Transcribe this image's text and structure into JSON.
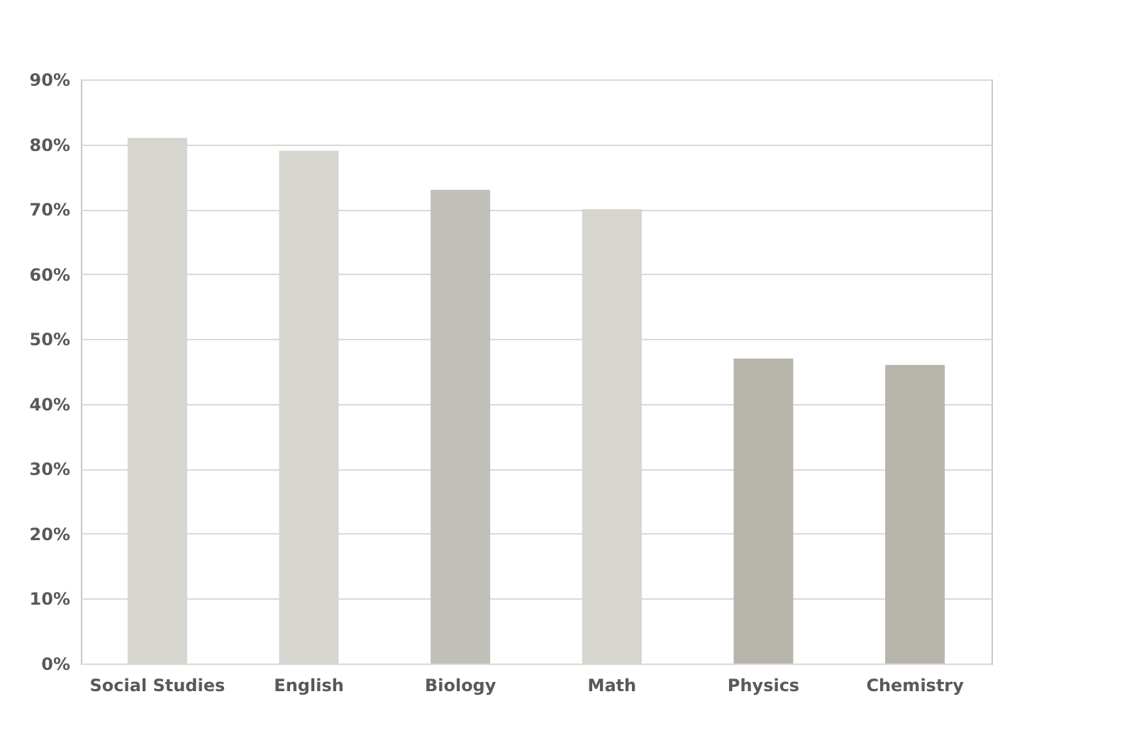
{
  "chart_data": {
    "type": "bar",
    "categories": [
      "Social Studies",
      "English",
      "Biology",
      "Math",
      "Physics",
      "Chemistry"
    ],
    "values": [
      81,
      79,
      73,
      70,
      47,
      46
    ],
    "colors": [
      "#d6d5cf",
      "#d6d5cf",
      "#c1c0b8",
      "#d6d5cf",
      "#b7b4ac",
      "#b7b4ac"
    ],
    "ylim": [
      0,
      90
    ],
    "yticks": [
      {
        "value": 0,
        "label": "0%"
      },
      {
        "value": 10,
        "label": "10%"
      },
      {
        "value": 20,
        "label": "20%"
      },
      {
        "value": 30,
        "label": "30%"
      },
      {
        "value": 40,
        "label": "40%"
      },
      {
        "value": 50,
        "label": "50%"
      },
      {
        "value": 60,
        "label": "60%"
      },
      {
        "value": 70,
        "label": "70%"
      },
      {
        "value": 80,
        "label": "80%"
      },
      {
        "value": 90,
        "label": "90%"
      }
    ],
    "grid": "y"
  }
}
